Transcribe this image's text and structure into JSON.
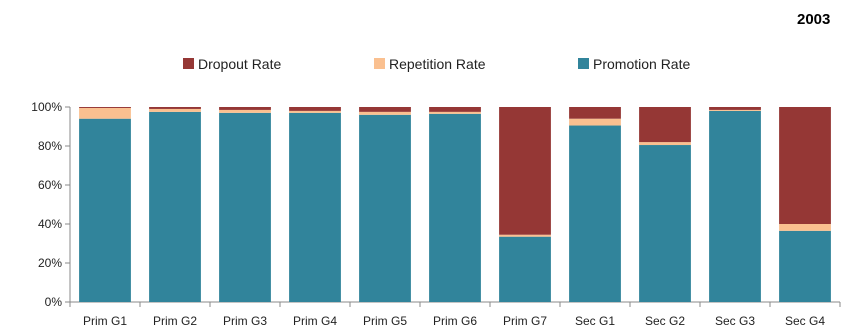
{
  "chart_data": {
    "type": "bar",
    "stacked": true,
    "percent": true,
    "title": "2003",
    "xlabel": "",
    "ylabel": "",
    "ylim": [
      0,
      100
    ],
    "yticks": [
      "0%",
      "20%",
      "40%",
      "60%",
      "80%",
      "100%"
    ],
    "grid": false,
    "legend": "top-center",
    "categories": [
      "Prim G1",
      "Prim G2",
      "Prim G3",
      "Prim G4",
      "Prim G5",
      "Prim G6",
      "Prim G7",
      "Sec G1",
      "Sec G2",
      "Sec G3",
      "Sec G4"
    ],
    "series": [
      {
        "name": "Promotion Rate",
        "color": "#31849B",
        "values": [
          94,
          97.5,
          97,
          97,
          96,
          96.5,
          33.5,
          90.5,
          80.5,
          98,
          36.5
        ]
      },
      {
        "name": "Repetition Rate",
        "color": "#FAC090",
        "values": [
          5.5,
          1.5,
          1.5,
          1,
          1.5,
          1,
          1,
          3.5,
          1.5,
          0.5,
          3.5
        ]
      },
      {
        "name": "Dropout Rate",
        "color": "#953735",
        "values": [
          0.5,
          1,
          1.5,
          2,
          2.5,
          2.5,
          65.5,
          6,
          18,
          1.5,
          60
        ]
      }
    ],
    "legend_order": [
      "Dropout Rate",
      "Repetition Rate",
      "Promotion Rate"
    ]
  }
}
